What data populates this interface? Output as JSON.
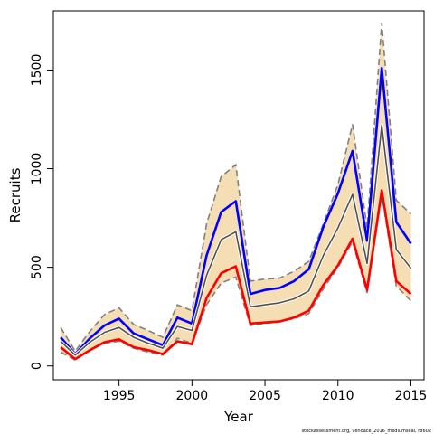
{
  "chart_data": {
    "type": "line",
    "xlabel": "Year",
    "ylabel": "Recruits",
    "xlim": [
      1990.5,
      2015.9
    ],
    "ylim": [
      -70,
      1800
    ],
    "x_ticks": [
      1995,
      2000,
      2005,
      2010,
      2015
    ],
    "y_ticks": [
      0,
      500,
      1000,
      1500
    ],
    "footnote": "stockassessment.org, vendace_2016_mediumseal, r8602",
    "x": [
      1991,
      1992,
      1993,
      1994,
      1995,
      1996,
      1997,
      1998,
      1999,
      2000,
      2001,
      2002,
      2003,
      2004,
      2005,
      2006,
      2007,
      2008,
      2009,
      2010,
      2011,
      2012,
      2013,
      2014,
      2015
    ],
    "band": {
      "fill": "#f5deb3",
      "upper": [
        195,
        75,
        175,
        260,
        295,
        210,
        180,
        145,
        310,
        280,
        720,
        960,
        1020,
        430,
        440,
        445,
        480,
        530,
        720,
        920,
        1225,
        700,
        1740,
        840,
        770
      ],
      "lower": [
        70,
        30,
        80,
        115,
        125,
        90,
        70,
        55,
        140,
        115,
        310,
        420,
        450,
        205,
        215,
        225,
        240,
        265,
        390,
        500,
        630,
        370,
        870,
        405,
        330
      ]
    },
    "series": [
      {
        "color": "#0000ff",
        "values": [
          145,
          60,
          140,
          205,
          240,
          165,
          135,
          105,
          245,
          215,
          560,
          780,
          835,
          365,
          385,
          395,
          430,
          490,
          705,
          875,
          1090,
          635,
          1510,
          730,
          620
        ]
      },
      {
        "color": "#505050",
        "values": [
          125,
          55,
          120,
          170,
          195,
          145,
          115,
          90,
          200,
          180,
          460,
          640,
          680,
          300,
          310,
          320,
          340,
          380,
          560,
          700,
          870,
          520,
          1220,
          590,
          495
        ]
      },
      {
        "color": "#ff0000",
        "values": [
          95,
          35,
          80,
          120,
          135,
          95,
          80,
          60,
          125,
          110,
          345,
          470,
          505,
          215,
          220,
          225,
          245,
          280,
          410,
          510,
          645,
          385,
          890,
          430,
          365
        ]
      }
    ]
  }
}
